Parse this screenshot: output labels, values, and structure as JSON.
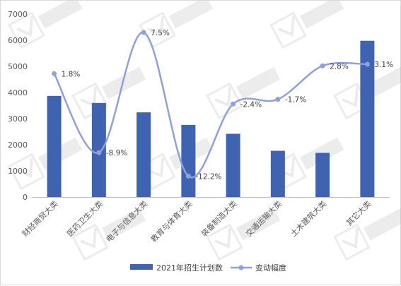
{
  "chart_data": {
    "type": "bar",
    "categories": [
      "财经商贸大类",
      "医药卫生大类",
      "电子与信息大类",
      "教育与体育大类",
      "装备制造大类",
      "交通运输大类",
      "土木建筑大类",
      "其它大类"
    ],
    "ylim": [
      0,
      7000
    ],
    "yticks": [
      "0",
      "1000",
      "2000",
      "3000",
      "4000",
      "5000",
      "6000",
      "7000"
    ],
    "grid": false,
    "legend_position": "bottom",
    "series": [
      {
        "name": "2021年招生计划数",
        "type": "bar",
        "color": "#3f63b0",
        "values": [
          3870,
          3600,
          3240,
          2760,
          2420,
          1770,
          1690,
          5980
        ]
      },
      {
        "name": "变动幅度",
        "type": "line",
        "smooth": true,
        "color": "#8fa1d8",
        "values": [
          1.8,
          -8.9,
          7.5,
          -12.2,
          -2.4,
          -1.7,
          2.8,
          3.1
        ],
        "labels": [
          "1.8%",
          "-8.9%",
          "7.5%",
          "-12.2%",
          "-2.4%",
          "-1.7%",
          "2.8%",
          "3.1%"
        ],
        "plotted_at": [
          4720,
          1700,
          6300,
          800,
          3560,
          3740,
          5020,
          5080
        ]
      }
    ]
  }
}
